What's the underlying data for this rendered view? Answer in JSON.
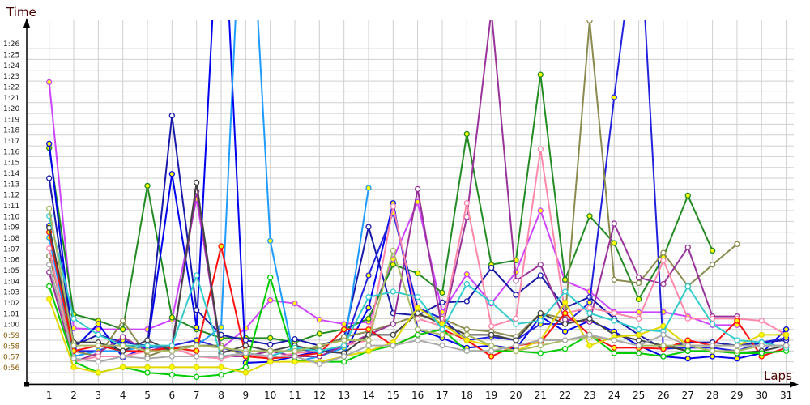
{
  "chart_data": {
    "type": "line",
    "title": "",
    "ylabel": "Time",
    "xlabel": "Laps",
    "x": [
      1,
      2,
      3,
      4,
      5,
      6,
      7,
      8,
      9,
      10,
      11,
      12,
      13,
      14,
      15,
      16,
      17,
      18,
      19,
      20,
      21,
      22,
      23,
      24,
      25,
      26,
      27,
      28,
      29,
      30,
      31
    ],
    "ylim_seconds": [
      54.9,
      88.6
    ],
    "y_tick_labels": [
      "0:56",
      "0:57",
      "0:58",
      "0:59",
      "1:00",
      "1:01",
      "1:02",
      "1:03",
      "1:04",
      "1:05",
      "1:06",
      "1:07",
      "1:08",
      "1:09",
      "1:10",
      "1:11",
      "1:12",
      "1:13",
      "1:14",
      "1:15",
      "1:16",
      "1:17",
      "1:18",
      "1:19",
      "1:20",
      "1:21",
      "1:22",
      "1:23",
      "1:24",
      "1:25",
      "1:26"
    ],
    "grid": true,
    "series": [
      {
        "name": "violet",
        "color": "#cc44ff",
        "marker": "#ffff00",
        "values": [
          82.9,
          60.1,
          60.0,
          60.0,
          60.0,
          60.9,
          72.1,
          58.2,
          60.1,
          62.7,
          62.4,
          60.9,
          60.5,
          60.7,
          66.5,
          71.8,
          61.6,
          65.1,
          62.4,
          65.3,
          71.0,
          64.5,
          63.5,
          61.6,
          61.6,
          61.6,
          61.2,
          60.4,
          60.4,
          null,
          null
        ]
      },
      {
        "name": "dark-green",
        "color": "#228b22",
        "marker": "#ffff00",
        "values": [
          76.8,
          61.4,
          60.8,
          60.0,
          73.3,
          61.1,
          60.0,
          59.2,
          59.2,
          59.2,
          58.8,
          59.6,
          60.0,
          61.0,
          66.0,
          65.2,
          63.4,
          78.1,
          66.0,
          66.4,
          83.6,
          64.6,
          70.5,
          68.0,
          62.8,
          66.7,
          72.4,
          67.3,
          null,
          null,
          null
        ]
      },
      {
        "name": "blue",
        "color": "#0000ee",
        "marker": "#ffff00",
        "values": [
          77.2,
          58.2,
          60.5,
          57.4,
          58.4,
          74.4,
          60.2,
          104.4,
          56.9,
          57.0,
          57.5,
          58.0,
          57.8,
          62.0,
          71.7,
          60.0,
          59.2,
          58.3,
          58.5,
          58.2,
          61.2,
          59.8,
          60.8,
          59.8,
          58.5,
          57.5,
          57.3,
          57.5,
          57.3,
          57.8,
          60.0
        ]
      },
      {
        "name": "navy",
        "color": "#1a1aaa",
        "marker": "#ffffff",
        "values": [
          74.0,
          58.5,
          59.5,
          58.8,
          58.5,
          79.8,
          61.8,
          59.5,
          59.0,
          58.6,
          59.1,
          58.5,
          59.2,
          69.5,
          61.5,
          61.3,
          62.5,
          62.6,
          65.7,
          63.2,
          65.0,
          62.0,
          63.0,
          61.0,
          59.5,
          58.2,
          58.8,
          58.8,
          58.5,
          58.8,
          59.0
        ]
      },
      {
        "name": "blue-2",
        "color": "#2222dd",
        "marker": "#ffff00",
        "values": [
          69.6,
          58.0,
          58.0,
          59.0,
          58.3,
          58.5,
          59.0,
          58.3,
          57.8,
          57.5,
          58.3,
          57.8,
          58.5,
          65.0,
          70.8,
          62.0,
          61.0,
          59.0,
          59.3,
          59.0,
          60.5,
          60.5,
          62.5,
          81.5,
          99.3,
          58.2,
          58.3,
          58.3,
          58.0,
          58.8,
          59.2
        ]
      },
      {
        "name": "light-blue",
        "color": "#1e9bff",
        "marker": "#ffff00",
        "values": [
          68.5,
          57.5,
          58.0,
          58.0,
          58.5,
          58.0,
          58.5,
          60.2,
          109.0,
          68.2,
          57.0,
          57.5,
          58.3,
          73.1,
          null,
          null,
          null,
          null,
          null,
          null,
          null,
          null,
          null,
          null,
          null,
          null,
          null,
          null,
          null,
          null,
          null
        ]
      },
      {
        "name": "olive",
        "color": "#8b8b50",
        "marker": "#ffffff",
        "values": [
          66.8,
          58.0,
          57.5,
          60.8,
          57.5,
          58.3,
          58.5,
          58.5,
          57.5,
          58.0,
          58.0,
          58.3,
          59.3,
          59.8,
          60.5,
          61.3,
          61.0,
          60.0,
          59.8,
          59.3,
          61.5,
          61.0,
          88.6,
          64.6,
          64.3,
          67.1,
          64.0,
          66.0,
          67.9,
          null,
          null
        ]
      },
      {
        "name": "dark-magenta",
        "color": "#993399",
        "marker": "#ffffff",
        "values": [
          65.3,
          57.0,
          57.8,
          59.3,
          58.0,
          58.5,
          72.8,
          57.5,
          57.5,
          58.0,
          57.5,
          57.5,
          58.5,
          59.5,
          60.5,
          73.0,
          60.0,
          70.4,
          89.5,
          64.5,
          66.0,
          60.9,
          60.7,
          69.8,
          64.8,
          64.2,
          67.6,
          61.2,
          61.2,
          null,
          null
        ]
      },
      {
        "name": "pink",
        "color": "#ff88aa",
        "marker": "#ffffff",
        "values": [
          67.5,
          57.0,
          57.5,
          57.5,
          58.0,
          58.3,
          57.5,
          57.3,
          57.8,
          57.3,
          57.8,
          58.0,
          58.5,
          59.0,
          71.4,
          61.0,
          60.3,
          71.7,
          60.3,
          61.0,
          76.7,
          61.5,
          62.0,
          61.5,
          61.0,
          66.4,
          61.0,
          61.0,
          61.0,
          60.8,
          59.5
        ]
      },
      {
        "name": "red",
        "color": "#ff1010",
        "marker": "#ffff00",
        "values": [
          69.0,
          58.0,
          58.5,
          58.0,
          58.0,
          58.3,
          58.0,
          67.7,
          57.5,
          57.3,
          57.5,
          57.8,
          60.0,
          60.0,
          58.5,
          59.5,
          60.0,
          59.0,
          57.5,
          58.5,
          58.8,
          61.5,
          59.5,
          58.3,
          58.3,
          58.2,
          59.0,
          58.5,
          60.8,
          57.5,
          58.3
        ]
      },
      {
        "name": "dark-gray",
        "color": "#444444",
        "marker": "#ffffff",
        "values": [
          69.4,
          58.8,
          58.8,
          58.0,
          59.0,
          58.0,
          73.6,
          57.8,
          58.5,
          58.0,
          58.5,
          58.0,
          57.8,
          59.5,
          59.5,
          61.5,
          60.5,
          59.5,
          59.5,
          59.0,
          61.5,
          60.5,
          61.0,
          59.5,
          59.0,
          58.5,
          58.0,
          58.0,
          57.8,
          58.0,
          58.5
        ]
      },
      {
        "name": "lime",
        "color": "#00cc00",
        "marker": "#ffffff",
        "values": [
          64.0,
          57.0,
          56.0,
          56.5,
          56.0,
          55.8,
          55.6,
          55.8,
          56.5,
          64.8,
          57.1,
          57.0,
          57.0,
          58.0,
          58.5,
          59.5,
          60.0,
          58.0,
          58.0,
          58.0,
          57.8,
          58.2,
          59.5,
          57.8,
          57.8,
          57.5,
          58.0,
          58.0,
          57.8,
          57.8,
          58.0
        ]
      },
      {
        "name": "yellow",
        "color": "#e0d800",
        "marker": "#ffff00",
        "values": [
          62.8,
          56.5,
          56.0,
          56.5,
          56.5,
          56.5,
          56.5,
          56.5,
          56.0,
          57.0,
          57.0,
          57.0,
          57.5,
          58.0,
          58.8,
          62.0,
          60.5,
          59.0,
          58.5,
          58.0,
          59.0,
          62.5,
          58.5,
          59.3,
          59.5,
          60.3,
          58.5,
          58.5,
          58.5,
          59.5,
          59.5
        ]
      },
      {
        "name": "cyan",
        "color": "#33cccc",
        "marker": "#ffffff",
        "values": [
          70.5,
          61.0,
          59.5,
          58.5,
          58.5,
          58.5,
          65.0,
          57.5,
          57.8,
          57.5,
          58.3,
          58.0,
          58.5,
          63.0,
          63.5,
          63.0,
          60.0,
          64.2,
          62.5,
          60.5,
          60.8,
          63.5,
          61.5,
          60.8,
          60.0,
          59.8,
          64.0,
          60.5,
          59.0,
          58.8,
          58.3
        ]
      },
      {
        "name": "khaki",
        "color": "#aabb66",
        "marker": "#ffffff",
        "values": [
          71.2,
          58.5,
          58.5,
          58.5,
          58.0,
          58.0,
          58.5,
          58.3,
          58.0,
          58.0,
          58.0,
          58.5,
          59.0,
          59.0,
          67.3,
          60.0,
          59.5,
          59.5,
          58.5,
          58.0,
          58.5,
          59.0,
          59.3,
          59.0,
          58.5,
          58.5,
          58.5,
          58.0,
          58.0,
          58.5,
          58.5
        ]
      },
      {
        "name": "gray",
        "color": "#aaaaaa",
        "marker": "#ffffff",
        "values": [
          66.0,
          57.3,
          57.0,
          57.5,
          57.3,
          57.5,
          57.5,
          57.5,
          57.8,
          57.5,
          57.5,
          56.8,
          57.5,
          58.5,
          58.5,
          59.0,
          58.5,
          58.0,
          58.0,
          58.5,
          59.0,
          59.0,
          59.5,
          59.0,
          58.5,
          59.5,
          58.5,
          58.5,
          58.5,
          58.5,
          58.5
        ]
      }
    ]
  }
}
